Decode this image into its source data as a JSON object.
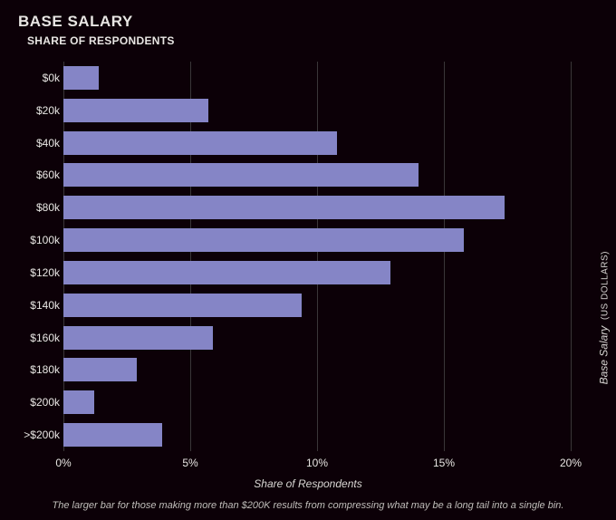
{
  "chart": {
    "type": "bar-horizontal",
    "title": "BASE SALARY",
    "title_fontsize": 17,
    "subtitle": "SHARE OF RESPONDENTS",
    "subtitle_fontsize": 12,
    "background_color": "#0c0007",
    "text_color": "#e8e6e3",
    "bar_color": "#8585c6",
    "grid_color": "#3a3638",
    "categories": [
      "$0k",
      "$20k",
      "$40k",
      "$60k",
      "$80k",
      "$100k",
      "$120k",
      "$140k",
      "$160k",
      "$180k",
      "$200k",
      ">$200k"
    ],
    "values": [
      1.4,
      5.7,
      10.8,
      14.0,
      17.4,
      15.8,
      12.9,
      9.4,
      5.9,
      2.9,
      1.2,
      3.9
    ],
    "xlim": [
      0,
      20
    ],
    "xticks": [
      0,
      5,
      10,
      15,
      20
    ],
    "xtick_labels": [
      "0%",
      "5%",
      "10%",
      "15%",
      "20%"
    ],
    "xlabel": "Share of Respondents",
    "xlabel_fontsize": 12,
    "ylabel": "Base Salary",
    "ylabel_unit": "(US DOLLARS)",
    "ylabel_fontsize": 12,
    "category_fontsize": 12,
    "tick_fontsize": 12,
    "bar_gap_ratio": 0.27,
    "footnote": "The larger bar for those making more than $200K results from compressing what may be a long tail into a single bin.",
    "footnote_fontsize": 11
  }
}
